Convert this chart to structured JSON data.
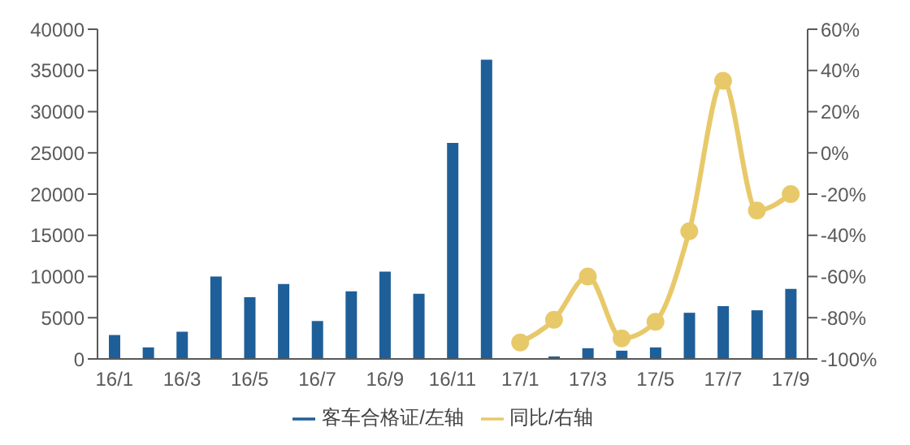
{
  "chart_data": {
    "type": "bar",
    "categories": [
      "16/1",
      null,
      "16/3",
      null,
      "16/5",
      null,
      "16/7",
      null,
      "16/9",
      null,
      "16/11",
      null,
      "17/1",
      null,
      "17/3",
      null,
      "17/5",
      null,
      "17/7",
      null,
      "17/9"
    ],
    "series": [
      {
        "name": "客车合格证/左轴",
        "color": "#1f5f99",
        "values": [
          2900,
          1400,
          3300,
          10000,
          7500,
          9100,
          4600,
          8200,
          10600,
          7900,
          26200,
          36300,
          100,
          300,
          1300,
          1000,
          1400,
          5600,
          6400,
          5900,
          8500
        ]
      },
      {
        "name": "同比/右轴",
        "type": "line",
        "axis": "y2",
        "color": "#e8c96a",
        "marker": "circle",
        "values": [
          null,
          null,
          null,
          null,
          null,
          null,
          null,
          null,
          null,
          null,
          null,
          null,
          -92,
          -81,
          -60,
          -90,
          -82,
          -38,
          35,
          -28,
          -20
        ]
      }
    ],
    "ylim": [
      0,
      40000
    ],
    "yticks": [
      0,
      5000,
      10000,
      15000,
      20000,
      25000,
      30000,
      35000,
      40000
    ],
    "y2lim": [
      -100,
      60
    ],
    "y2ticks": [
      {
        "value": -100,
        "label": "-100%"
      },
      {
        "value": -80,
        "label": "-80%"
      },
      {
        "value": -60,
        "label": "-60%"
      },
      {
        "value": -40,
        "label": "-40%"
      },
      {
        "value": -20,
        "label": "-20%"
      },
      {
        "value": 0,
        "label": "0%"
      },
      {
        "value": 20,
        "label": "20%"
      },
      {
        "value": 40,
        "label": "40%"
      },
      {
        "value": 60,
        "label": "60%"
      }
    ],
    "grid": false,
    "legend": "bottom"
  }
}
